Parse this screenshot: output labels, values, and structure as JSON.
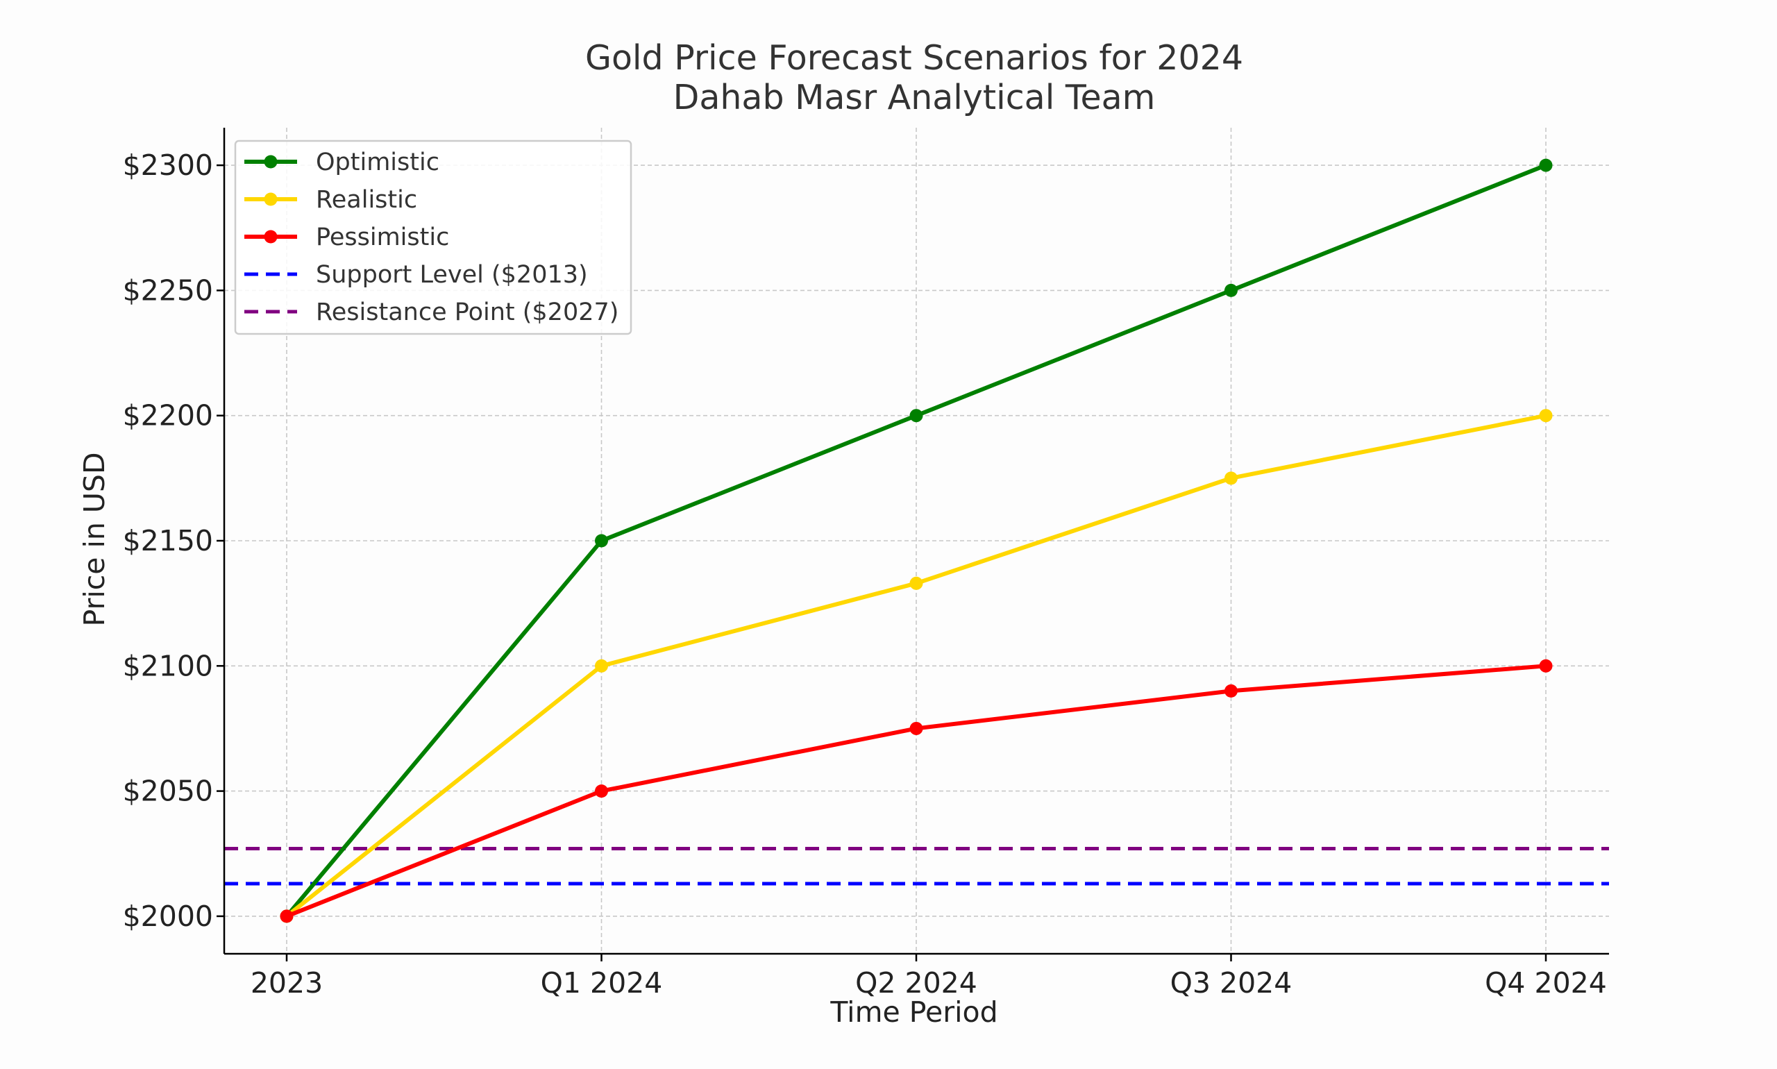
{
  "chart_data": {
    "type": "line",
    "title": "Gold Price Forecast Scenarios for 2024",
    "subtitle": "Dahab Masr Analytical Team",
    "xlabel": "Time Period",
    "ylabel": "Price in USD",
    "categories": [
      "2023",
      "Q1 2024",
      "Q2 2024",
      "Q3 2024",
      "Q4 2024"
    ],
    "ylim": [
      1985,
      2315
    ],
    "yticks": [
      2000,
      2050,
      2100,
      2150,
      2200,
      2250,
      2300
    ],
    "ytick_labels": [
      "$2000",
      "$2050",
      "$2100",
      "$2150",
      "$2200",
      "$2250",
      "$2300"
    ],
    "grid": true,
    "legend_position": "top-left",
    "series": [
      {
        "name": "Optimistic",
        "color": "#008000",
        "values": [
          2000,
          2150,
          2200,
          2250,
          2300
        ]
      },
      {
        "name": "Realistic",
        "color": "#FFD700",
        "values": [
          2000,
          2100,
          2133,
          2175,
          2200
        ]
      },
      {
        "name": "Pessimistic",
        "color": "#FF0000",
        "values": [
          2000,
          2050,
          2075,
          2090,
          2100
        ]
      }
    ],
    "reference_lines": [
      {
        "name": "Support Level ($2013)",
        "value": 2013,
        "color": "#0000FF",
        "style": "dashed"
      },
      {
        "name": "Resistance Point ($2027)",
        "value": 2027,
        "color": "#800080",
        "style": "dashed"
      }
    ]
  }
}
